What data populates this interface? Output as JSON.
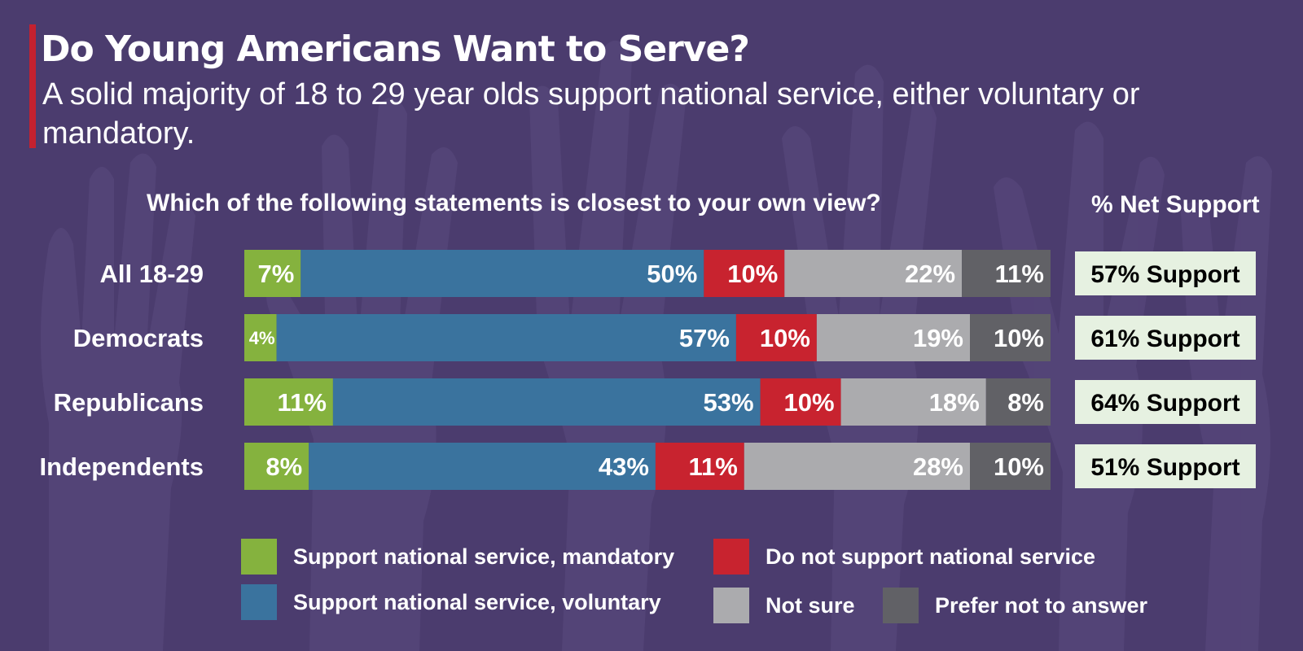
{
  "title": "Do Young Americans Want to Serve?",
  "subtitle": "A solid majority of 18 to 29 year olds support national service, either voluntary or mandatory.",
  "question": "Which of the following statements is closest to your own view?",
  "net_header": "% Net Support",
  "colors": {
    "background": "#4b3c6e",
    "accent_bar": "#c4212f",
    "support_box": "#e6f1e1"
  },
  "chart_data": {
    "type": "bar",
    "orientation": "horizontal",
    "stacked": true,
    "title": "Do Young Americans Want to Serve?",
    "subtitle": "A solid majority of 18 to 29 year olds support national service, either voluntary or mandatory.",
    "categories": [
      "All 18-29",
      "Democrats",
      "Republicans",
      "Independents"
    ],
    "series": [
      {
        "name": "Support national service, mandatory",
        "color": "#85b23e",
        "values": [
          7,
          4,
          11,
          8
        ],
        "labels": [
          "7%",
          "4%",
          "11%",
          "8%"
        ]
      },
      {
        "name": "Support national service, voluntary",
        "color": "#3a739e",
        "values": [
          50,
          57,
          53,
          43
        ],
        "labels": [
          "50%",
          "57%",
          "53%",
          "43%"
        ]
      },
      {
        "name": "Do not support national service",
        "color": "#c8232f",
        "values": [
          10,
          10,
          10,
          11
        ],
        "labels": [
          "10%",
          "10%",
          "10%",
          "11%"
        ]
      },
      {
        "name": "Not sure",
        "color": "#ababae",
        "values": [
          22,
          19,
          18,
          28
        ],
        "labels": [
          "22%",
          "19%",
          "18%",
          "28%"
        ]
      },
      {
        "name": "Prefer not to answer",
        "color": "#616166",
        "values": [
          11,
          10,
          8,
          10
        ],
        "labels": [
          "11%",
          "10%",
          "8%",
          "10%"
        ]
      }
    ],
    "net_support": [
      "57% Support",
      "61% Support",
      "64% Support",
      "51% Support"
    ],
    "xlim": [
      0,
      100
    ],
    "grid": false,
    "legend_position": "bottom"
  }
}
